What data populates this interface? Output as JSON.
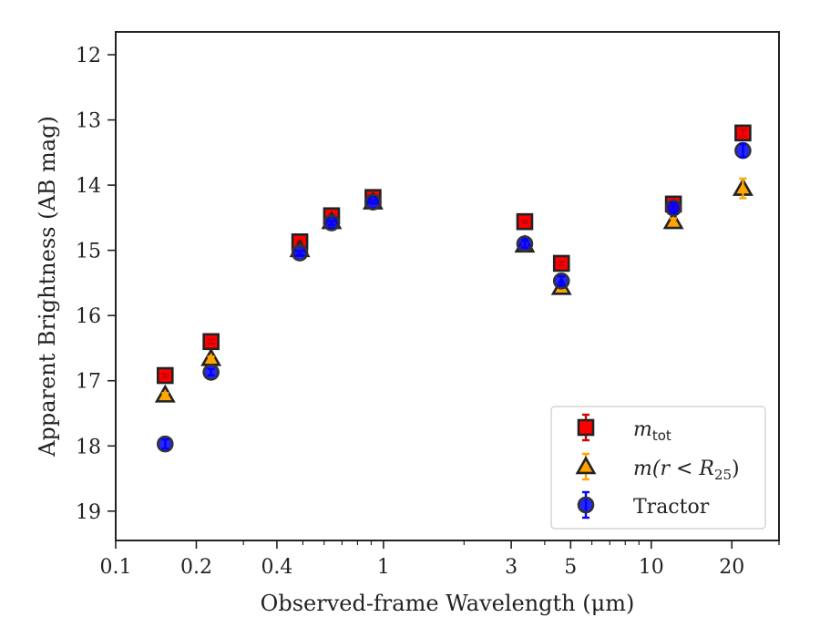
{
  "chart_data": {
    "type": "scatter",
    "xlabel": "Observed-frame Wavelength (μm)",
    "ylabel": "Apparent Brightness (AB mag)",
    "x_scale": "log",
    "xlim": [
      0.1,
      30
    ],
    "ylim": [
      19.45,
      11.65
    ],
    "y_inverted": true,
    "grid": false,
    "legend_position": "lower-right",
    "x_ticks": [
      {
        "value": 0.1,
        "label": "0.1"
      },
      {
        "value": 0.2,
        "label": "0.2"
      },
      {
        "value": 0.4,
        "label": "0.4"
      },
      {
        "value": 1,
        "label": "1"
      },
      {
        "value": 3,
        "label": "3"
      },
      {
        "value": 5,
        "label": "5"
      },
      {
        "value": 10,
        "label": "10"
      },
      {
        "value": 20,
        "label": "20"
      }
    ],
    "y_ticks": [
      12,
      13,
      14,
      15,
      16,
      17,
      18,
      19
    ],
    "series": [
      {
        "name": "m_tot",
        "legend_main": "m",
        "legend_sub": "tot",
        "marker": "square",
        "fill": "#ff0000",
        "errcolor": "#d00000",
        "x": [
          0.153,
          0.227,
          0.487,
          0.64,
          0.914,
          3.37,
          4.62,
          12.1,
          22.0
        ],
        "y": [
          16.92,
          16.4,
          14.87,
          14.47,
          14.19,
          14.56,
          15.2,
          14.29,
          13.2
        ],
        "yerr": [
          0.03,
          0.03,
          0.02,
          0.02,
          0.02,
          0.02,
          0.03,
          0.03,
          0.05
        ]
      },
      {
        "name": "m(r < R25)",
        "legend_main": "m(r < R",
        "legend_sub": "25",
        "legend_close": ")",
        "marker": "triangle",
        "fill": "#ffa500",
        "errcolor": "#ffa500",
        "x": [
          0.153,
          0.227,
          0.487,
          0.64,
          0.914,
          3.37,
          4.62,
          12.1,
          22.0
        ],
        "y": [
          17.22,
          16.66,
          14.99,
          14.56,
          14.26,
          14.92,
          15.57,
          14.56,
          14.05
        ],
        "yerr": [
          0.03,
          0.03,
          0.02,
          0.02,
          0.02,
          0.03,
          0.04,
          0.05,
          0.15
        ]
      },
      {
        "name": "Tractor",
        "legend_main": "Tractor",
        "marker": "circle",
        "fill": "#0000ff",
        "errcolor": "#0000ff",
        "x": [
          0.153,
          0.227,
          0.487,
          0.64,
          0.914,
          3.37,
          4.62,
          12.1,
          22.0
        ],
        "y": [
          17.97,
          16.87,
          15.04,
          14.58,
          14.26,
          14.9,
          15.47,
          14.35,
          13.47
        ],
        "yerr": [
          0.07,
          0.05,
          0.03,
          0.03,
          0.02,
          0.06,
          0.07,
          0.08,
          0.1
        ]
      }
    ]
  }
}
